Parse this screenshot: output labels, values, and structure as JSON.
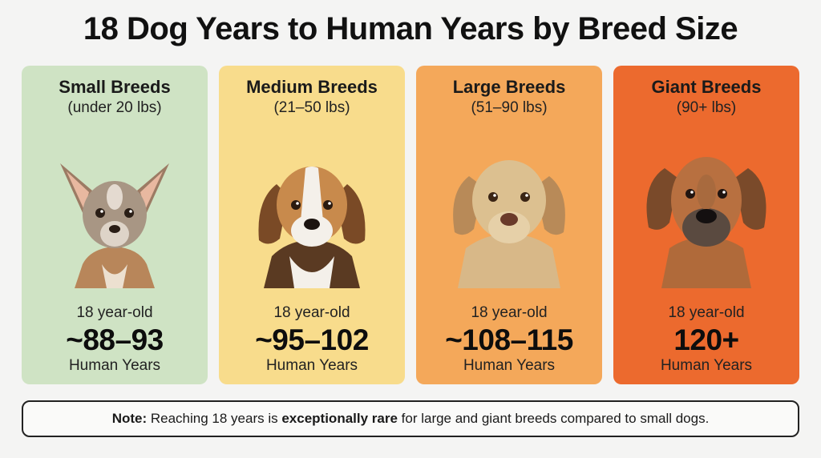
{
  "title": "18 Dog Years to Human Years by Breed Size",
  "cards": [
    {
      "name": "Small Breeds",
      "range": "(under 20 lbs)",
      "age_label": "18 year-old",
      "value": "~88–93",
      "unit": "Human Years",
      "bg": "#cfe3c4",
      "dog_icon": "chihuahua-photo"
    },
    {
      "name": "Medium Breeds",
      "range": "(21–50 lbs)",
      "age_label": "18 year-old",
      "value": "~95–102",
      "unit": "Human Years",
      "bg": "#f8dc8c",
      "dog_icon": "beagle-photo"
    },
    {
      "name": "Large Breeds",
      "range": "(51–90 lbs)",
      "age_label": "18 year-old",
      "value": "~108–115",
      "unit": "Human Years",
      "bg": "#f4a85a",
      "dog_icon": "labrador-photo"
    },
    {
      "name": "Giant Breeds",
      "range": "(90+ lbs)",
      "age_label": "18 year-old",
      "value": "120+",
      "unit": "Human Years",
      "bg": "#ec6a2e",
      "dog_icon": "great-dane-photo"
    }
  ],
  "note": {
    "label": "Note:",
    "text_before": " Reaching 18 years is ",
    "emphasis": "exceptionally rare",
    "text_after": " for large and giant breeds compared to small dogs."
  }
}
